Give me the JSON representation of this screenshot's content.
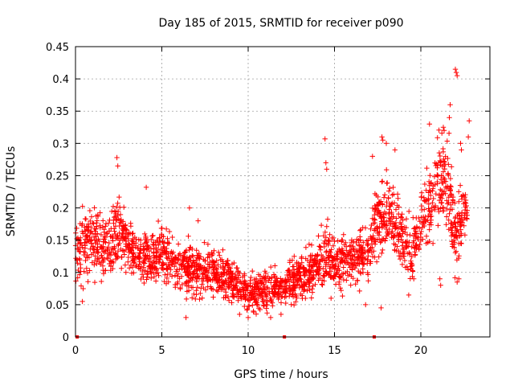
{
  "chart_data": {
    "type": "scatter",
    "title": "Day 185 of 2015, SRMTID for receiver p090",
    "xlabel": "GPS time / hours",
    "ylabel": "SRMTID / TECUs",
    "xlim": [
      0,
      24
    ],
    "ylim": [
      0,
      0.45
    ],
    "x_ticks": [
      0,
      5,
      10,
      15,
      20
    ],
    "x_tick_labels": [
      "0",
      "5",
      "10",
      "15",
      "20"
    ],
    "y_ticks": [
      0,
      0.05,
      0.1,
      0.15,
      0.2,
      0.25,
      0.3,
      0.35,
      0.4,
      0.45
    ],
    "y_tick_labels": [
      "0",
      "0.05",
      "0.1",
      "0.15",
      "0.2",
      "0.25",
      "0.3",
      "0.35",
      "0.4",
      "0.45"
    ],
    "grid": true,
    "marker": "+",
    "marker_color": "#ff0000",
    "zero_markers_x": [
      0.1,
      12.1,
      17.3
    ],
    "series": [
      {
        "name": "SRMTID",
        "color": "#ff0000",
        "description_trend_x": [
          0,
          1,
          2,
          2.5,
          3,
          4,
          5,
          6,
          7,
          8,
          9,
          10,
          11,
          12,
          13,
          14,
          14.5,
          15,
          16,
          17,
          17.5,
          18,
          19,
          19.5,
          20,
          20.5,
          21,
          21.5,
          22,
          22.5
        ],
        "description_trend_y": [
          0.13,
          0.15,
          0.14,
          0.17,
          0.14,
          0.12,
          0.13,
          0.11,
          0.1,
          0.1,
          0.09,
          0.07,
          0.07,
          0.08,
          0.09,
          0.11,
          0.13,
          0.11,
          0.12,
          0.13,
          0.18,
          0.2,
          0.15,
          0.12,
          0.19,
          0.21,
          0.23,
          0.25,
          0.15,
          0.2
        ],
        "spread_y": [
          0.04,
          0.05,
          0.04,
          0.05,
          0.04,
          0.035,
          0.035,
          0.035,
          0.035,
          0.035,
          0.03,
          0.025,
          0.025,
          0.03,
          0.03,
          0.035,
          0.05,
          0.035,
          0.035,
          0.04,
          0.05,
          0.05,
          0.045,
          0.04,
          0.05,
          0.05,
          0.06,
          0.08,
          0.05,
          0.05
        ],
        "points": [
          [
            14.45,
            0.307
          ],
          [
            14.5,
            0.27
          ],
          [
            14.55,
            0.26
          ],
          [
            2.4,
            0.278
          ],
          [
            2.45,
            0.265
          ],
          [
            22.0,
            0.415
          ],
          [
            22.05,
            0.41
          ],
          [
            22.1,
            0.405
          ],
          [
            21.7,
            0.36
          ],
          [
            21.65,
            0.34
          ],
          [
            21.3,
            0.325
          ],
          [
            21.35,
            0.32
          ],
          [
            20.5,
            0.33
          ],
          [
            22.8,
            0.335
          ],
          [
            22.75,
            0.31
          ],
          [
            17.75,
            0.31
          ],
          [
            17.8,
            0.305
          ],
          [
            18.0,
            0.3
          ],
          [
            18.5,
            0.29
          ],
          [
            17.2,
            0.28
          ],
          [
            22.3,
            0.3
          ],
          [
            22.35,
            0.29
          ],
          [
            4.1,
            0.232
          ],
          [
            6.6,
            0.2
          ],
          [
            7.1,
            0.18
          ],
          [
            6.4,
            0.03
          ],
          [
            9.5,
            0.035
          ],
          [
            10.0,
            0.03
          ],
          [
            11.3,
            0.03
          ],
          [
            11.9,
            0.035
          ],
          [
            10.3,
            0.04
          ],
          [
            14.8,
            0.06
          ],
          [
            17.7,
            0.045
          ],
          [
            16.8,
            0.05
          ],
          [
            0.4,
            0.055
          ],
          [
            22.1,
            0.085
          ],
          [
            22.2,
            0.09
          ],
          [
            19.3,
            0.065
          ],
          [
            21.1,
            0.09
          ],
          [
            21.15,
            0.08
          ]
        ]
      }
    ]
  }
}
